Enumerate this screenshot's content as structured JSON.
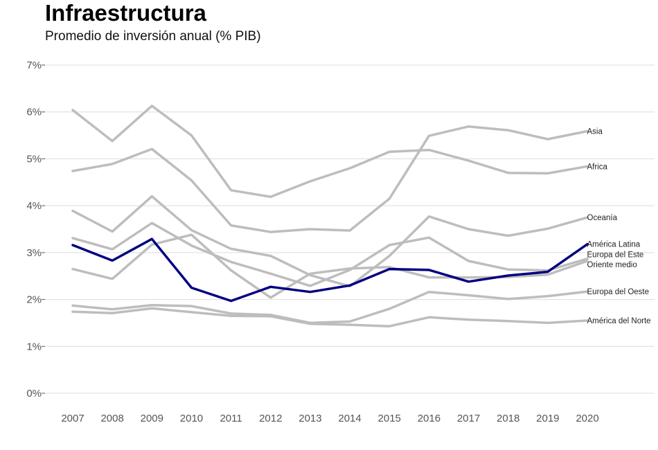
{
  "chart_data": {
    "type": "line",
    "title": "Infraestructura",
    "subtitle": "Promedio de inversión anual (% PIB)",
    "x": [
      2007,
      2008,
      2009,
      2010,
      2011,
      2012,
      2013,
      2014,
      2015,
      2016,
      2017,
      2018,
      2019,
      2020
    ],
    "ylim": [
      0,
      7
    ],
    "yticks": [
      "0%",
      "1%",
      "2%",
      "3%",
      "4%",
      "5%",
      "6%",
      "7%"
    ],
    "grid": true,
    "highlight_color": "#000080",
    "muted_color": "#bdbdbd",
    "series": [
      {
        "name": "Africa",
        "values": [
          6.04,
          5.38,
          6.13,
          5.5,
          4.33,
          4.19,
          4.52,
          4.8,
          5.15,
          5.19,
          4.96,
          4.7,
          4.69,
          4.84
        ],
        "highlight": false
      },
      {
        "name": "Asia",
        "values": [
          4.74,
          4.89,
          5.21,
          4.54,
          3.58,
          3.44,
          3.5,
          3.47,
          4.15,
          5.49,
          5.69,
          5.61,
          5.42,
          5.59
        ],
        "highlight": false
      },
      {
        "name": "Oceanía",
        "values": [
          3.89,
          3.45,
          4.2,
          3.48,
          3.08,
          2.93,
          2.52,
          2.28,
          2.93,
          3.77,
          3.5,
          3.36,
          3.51,
          3.75
        ],
        "highlight": false
      },
      {
        "name": "Europa del Este",
        "values": [
          3.31,
          3.07,
          3.63,
          3.15,
          2.8,
          2.55,
          2.29,
          2.63,
          3.16,
          3.32,
          2.82,
          2.64,
          2.62,
          2.87
        ],
        "highlight": false
      },
      {
        "name": "Oriente medio",
        "values": [
          2.65,
          2.44,
          3.17,
          3.38,
          2.62,
          2.04,
          2.55,
          2.66,
          2.69,
          2.47,
          2.47,
          2.48,
          2.53,
          2.82
        ],
        "highlight": false
      },
      {
        "name": "Europa del Oeste",
        "values": [
          1.87,
          1.79,
          1.88,
          1.86,
          1.7,
          1.67,
          1.5,
          1.53,
          1.8,
          2.16,
          2.09,
          2.01,
          2.07,
          2.17
        ],
        "highlight": false
      },
      {
        "name": "América del Norte",
        "values": [
          1.74,
          1.71,
          1.81,
          1.73,
          1.65,
          1.64,
          1.48,
          1.46,
          1.43,
          1.62,
          1.57,
          1.54,
          1.5,
          1.55
        ],
        "highlight": false
      },
      {
        "name": "América Latina",
        "values": [
          3.16,
          2.83,
          3.29,
          2.25,
          1.97,
          2.27,
          2.16,
          2.3,
          2.65,
          2.63,
          2.38,
          2.51,
          2.59,
          3.18
        ],
        "highlight": true
      }
    ],
    "label_nudges": {
      "Europa del Este": -6,
      "Oriente medio": 5
    }
  }
}
